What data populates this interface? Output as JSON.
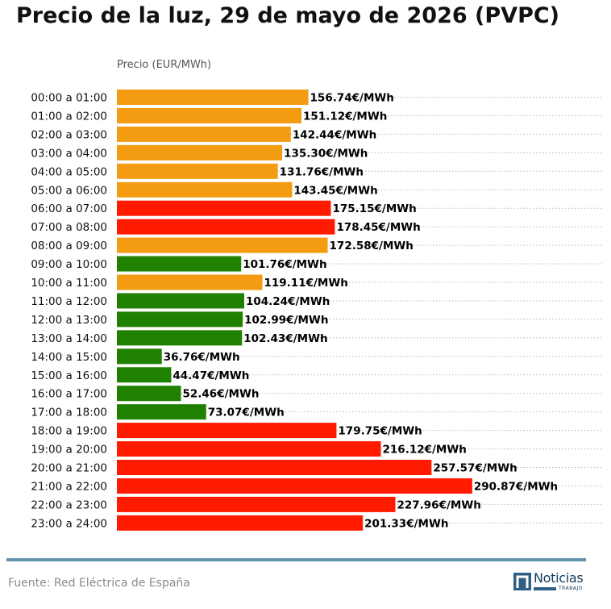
{
  "header": {
    "title": "Precio de la luz, 29 de mayo de 2026 (PVPC)"
  },
  "chart_data": {
    "type": "bar",
    "orientation": "horizontal",
    "title": "Precio de la luz, 29 de mayo de 2026 (PVPC)",
    "xlabel": "Precio (EUR/MWh)",
    "ylabel": "",
    "xlim": [
      0,
      300
    ],
    "grid": "dotted horizontal",
    "value_suffix": "€/MWh",
    "categories": [
      "00:00 a 01:00",
      "01:00 a 02:00",
      "02:00 a 03:00",
      "03:00 a 04:00",
      "04:00 a 05:00",
      "05:00 a 06:00",
      "06:00 a 07:00",
      "07:00 a 08:00",
      "08:00 a 09:00",
      "09:00 a 10:00",
      "10:00 a 11:00",
      "11:00 a 12:00",
      "12:00 a 13:00",
      "13:00 a 14:00",
      "14:00 a 15:00",
      "15:00 a 16:00",
      "16:00 a 17:00",
      "17:00 a 18:00",
      "18:00 a 19:00",
      "19:00 a 20:00",
      "20:00 a 21:00",
      "21:00 a 22:00",
      "22:00 a 23:00",
      "23:00 a 24:00"
    ],
    "values": [
      156.74,
      151.12,
      142.44,
      135.3,
      131.76,
      143.45,
      175.15,
      178.45,
      172.58,
      101.76,
      119.11,
      104.24,
      102.99,
      102.43,
      36.76,
      44.47,
      52.46,
      73.07,
      179.75,
      216.12,
      257.57,
      290.87,
      227.96,
      201.33
    ],
    "labels": [
      "156.74€/MWh",
      "151.12€/MWh",
      "142.44€/MWh",
      "135.30€/MWh",
      "131.76€/MWh",
      "143.45€/MWh",
      "175.15€/MWh",
      "178.45€/MWh",
      "172.58€/MWh",
      "101.76€/MWh",
      "119.11€/MWh",
      "104.24€/MWh",
      "102.99€/MWh",
      "102.43€/MWh",
      "36.76€/MWh",
      "44.47€/MWh",
      "52.46€/MWh",
      "73.07€/MWh",
      "179.75€/MWh",
      "216.12€/MWh",
      "257.57€/MWh",
      "290.87€/MWh",
      "227.96€/MWh",
      "201.33€/MWh"
    ],
    "levels": [
      "medio",
      "medio",
      "medio",
      "medio",
      "medio",
      "medio",
      "alto",
      "alto",
      "medio",
      "bajo",
      "medio",
      "bajo",
      "bajo",
      "bajo",
      "bajo",
      "bajo",
      "bajo",
      "bajo",
      "alto",
      "alto",
      "alto",
      "alto",
      "alto",
      "alto"
    ],
    "colors": {
      "bajo": "#208000",
      "medio": "#f39c12",
      "alto": "#ff1a00"
    }
  },
  "footer": {
    "source": "Fuente: Red Eléctrica de España"
  },
  "logo": {
    "name": "Noticias",
    "sub": "TRABAJO",
    "accent": "#2f5f83"
  }
}
